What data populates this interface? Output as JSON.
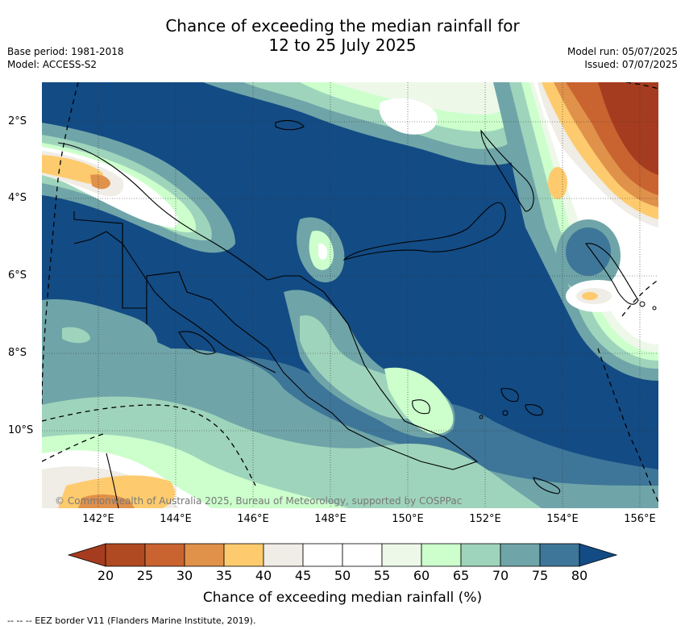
{
  "title_line1": "Chance of exceeding the median rainfall for",
  "title_line2": "12 to 25 July 2025",
  "base_period": "Base period: 1981-2018",
  "model": "Model: ACCESS-S2",
  "model_run": "Model run: 05/07/2025",
  "issued": "Issued: 07/07/2025",
  "lat_ticks": [
    "2°S",
    "4°S",
    "6°S",
    "8°S",
    "10°S"
  ],
  "lon_ticks": [
    "142°E",
    "144°E",
    "146°E",
    "148°E",
    "150°E",
    "152°E",
    "154°E",
    "156°E"
  ],
  "copyright": "© Commonwealth of Australia 2025, Bureau of Meteorology, supported by COSPPac",
  "colorbar": {
    "ticks": [
      "20",
      "25",
      "30",
      "35",
      "40",
      "45",
      "50",
      "55",
      "60",
      "65",
      "70",
      "75",
      "80"
    ],
    "label": "Chance of exceeding median rainfall (%)",
    "colors": [
      "#a63c1f",
      "#b04a22",
      "#c96430",
      "#e0914a",
      "#fdcb6e",
      "#f0ece6",
      "#ffffff",
      "#ffffff",
      "#edf8e9",
      "#ccffcc",
      "#9fd4bc",
      "#6fa5a8",
      "#3e7699",
      "#134b84"
    ]
  },
  "footer": "--  --  -- EEZ border V11 (Flanders Marine Institute, 2019).",
  "map_colors": {
    "deep_blue": "#134b84",
    "blue": "#3e7699",
    "teal": "#6fa5a8",
    "green": "#9fd4bc",
    "light_green": "#ccffcc",
    "pale": "#edf8e9",
    "white": "#ffffff",
    "grey": "#f0ece6",
    "yellow": "#fdcb6e",
    "orange": "#e0914a",
    "rust": "#c96430",
    "brown": "#a63c1f"
  }
}
